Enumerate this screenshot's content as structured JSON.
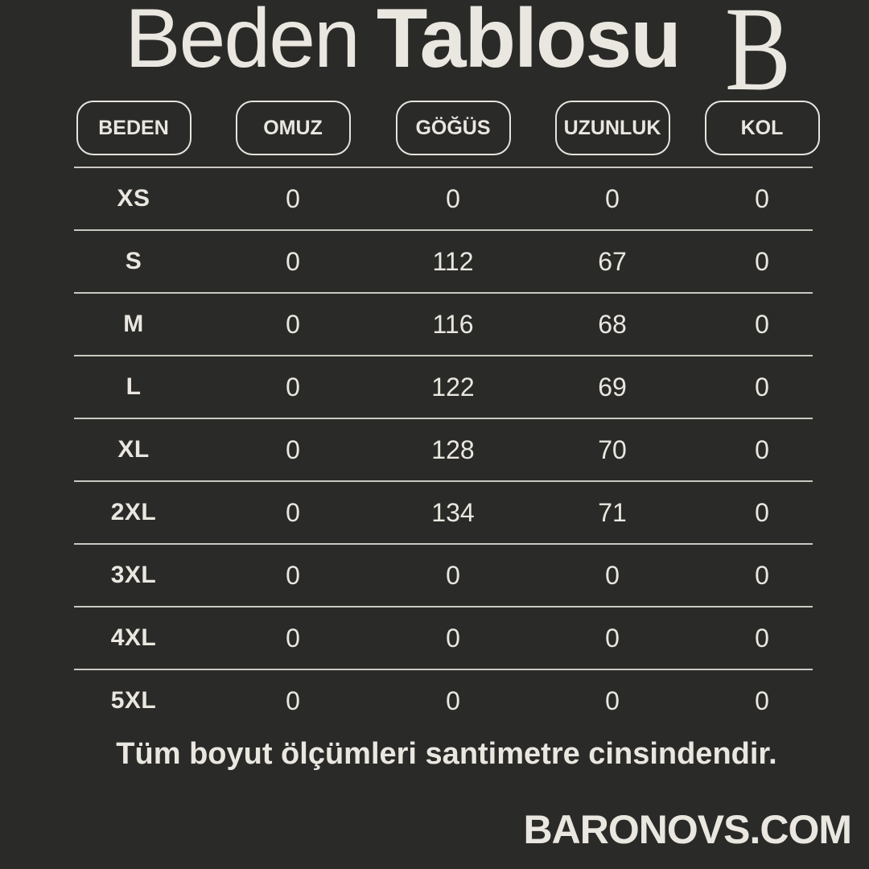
{
  "header": {
    "title_regular": "Beden",
    "title_bold": "Tablosu",
    "logo_letter": "B"
  },
  "table": {
    "columns": [
      "BEDEN",
      "OMUZ",
      "GÖĞÜS",
      "UZUNLUK",
      "KOL"
    ],
    "rows": [
      {
        "size": "XS",
        "values": [
          "0",
          "0",
          "0",
          "0"
        ]
      },
      {
        "size": "S",
        "values": [
          "0",
          "112",
          "67",
          "0"
        ]
      },
      {
        "size": "M",
        "values": [
          "0",
          "116",
          "68",
          "0"
        ]
      },
      {
        "size": "L",
        "values": [
          "0",
          "122",
          "69",
          "0"
        ]
      },
      {
        "size": "XL",
        "values": [
          "0",
          "128",
          "70",
          "0"
        ]
      },
      {
        "size": "2XL",
        "values": [
          "0",
          "134",
          "71",
          "0"
        ]
      },
      {
        "size": "3XL",
        "values": [
          "0",
          "0",
          "0",
          "0"
        ]
      },
      {
        "size": "4XL",
        "values": [
          "0",
          "0",
          "0",
          "0"
        ]
      },
      {
        "size": "5XL",
        "values": [
          "0",
          "0",
          "0",
          "0"
        ]
      }
    ]
  },
  "footer": {
    "note": "Tüm boyut ölçümleri santimetre cinsindendir.",
    "brand": "BARONOVS.COM"
  },
  "colors": {
    "background": "#2a2a28",
    "text": "#eae7e0",
    "line": "#cbc8c2",
    "pill_border": "#e7e4dd"
  },
  "chart_data": {
    "type": "table",
    "title": "Beden Tablosu",
    "columns": [
      "BEDEN",
      "OMUZ",
      "GÖĞÜS",
      "UZUNLUK",
      "KOL"
    ],
    "rows": [
      [
        "XS",
        0,
        0,
        0,
        0
      ],
      [
        "S",
        0,
        112,
        67,
        0
      ],
      [
        "M",
        0,
        116,
        68,
        0
      ],
      [
        "L",
        0,
        122,
        69,
        0
      ],
      [
        "XL",
        0,
        128,
        70,
        0
      ],
      [
        "2XL",
        0,
        134,
        71,
        0
      ],
      [
        "3XL",
        0,
        0,
        0,
        0
      ],
      [
        "4XL",
        0,
        0,
        0,
        0
      ],
      [
        "5XL",
        0,
        0,
        0,
        0
      ]
    ],
    "units": "cm",
    "note": "Tüm boyut ölçümleri santimetre cinsindendir."
  }
}
